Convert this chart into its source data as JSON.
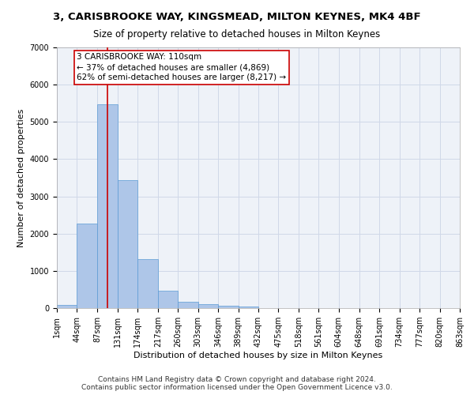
{
  "title_line1": "3, CARISBROOKE WAY, KINGSMEAD, MILTON KEYNES, MK4 4BF",
  "title_line2": "Size of property relative to detached houses in Milton Keynes",
  "xlabel": "Distribution of detached houses by size in Milton Keynes",
  "ylabel": "Number of detached properties",
  "bar_color": "#aec6e8",
  "bar_edgecolor": "#5b9bd5",
  "grid_color": "#d0d8e8",
  "bg_color": "#eef2f8",
  "vline_color": "#cc0000",
  "vline_x": 110,
  "annotation_line1": "3 CARISBROOKE WAY: 110sqm",
  "annotation_line2": "← 37% of detached houses are smaller (4,869)",
  "annotation_line3": "62% of semi-detached houses are larger (8,217) →",
  "annotation_box_color": "#cc0000",
  "bin_edges": [
    1,
    44,
    87,
    131,
    174,
    217,
    260,
    303,
    346,
    389,
    432,
    475,
    518,
    561,
    604,
    648,
    691,
    734,
    777,
    820,
    863
  ],
  "bar_heights": [
    75,
    2280,
    5480,
    3440,
    1310,
    470,
    160,
    100,
    65,
    40,
    0,
    0,
    0,
    0,
    0,
    0,
    0,
    0,
    0,
    0
  ],
  "ylim": [
    0,
    7000
  ],
  "yticks": [
    0,
    1000,
    2000,
    3000,
    4000,
    5000,
    6000,
    7000
  ],
  "xtick_labels": [
    "1sqm",
    "44sqm",
    "87sqm",
    "131sqm",
    "174sqm",
    "217sqm",
    "260sqm",
    "303sqm",
    "346sqm",
    "389sqm",
    "432sqm",
    "475sqm",
    "518sqm",
    "561sqm",
    "604sqm",
    "648sqm",
    "691sqm",
    "734sqm",
    "777sqm",
    "820sqm",
    "863sqm"
  ],
  "footnote": "Contains HM Land Registry data © Crown copyright and database right 2024.\nContains public sector information licensed under the Open Government Licence v3.0.",
  "title_fontsize": 9.5,
  "subtitle_fontsize": 8.5,
  "axis_label_fontsize": 8,
  "tick_fontsize": 7,
  "annotation_fontsize": 7.5,
  "footnote_fontsize": 6.5
}
